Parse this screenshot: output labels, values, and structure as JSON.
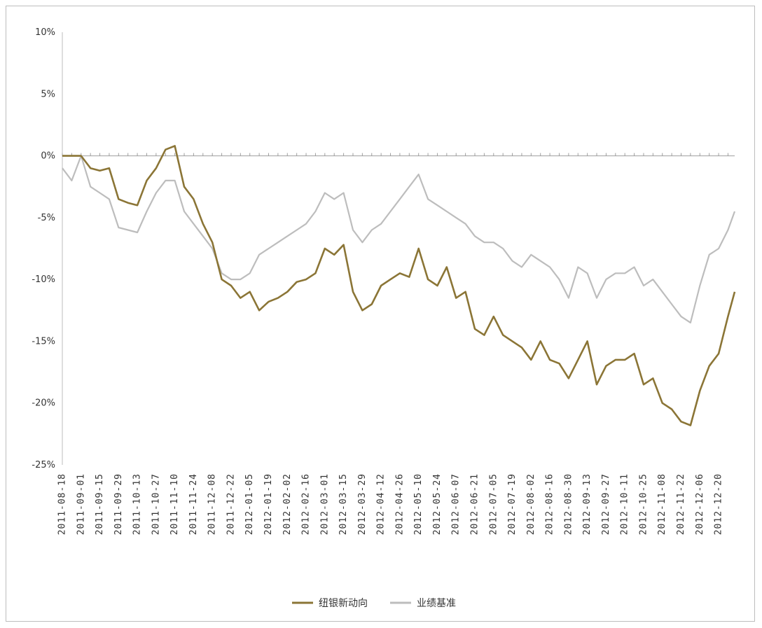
{
  "chart_data": {
    "type": "line",
    "title": "",
    "xlabel": "",
    "ylabel": "",
    "y_tick_labels": [
      "10%",
      "5%",
      "0%",
      "-5%",
      "-10%",
      "-15%",
      "-20%",
      "-25%"
    ],
    "y_tick_values": [
      10,
      5,
      0,
      -5,
      -10,
      -15,
      -20,
      -25
    ],
    "ylim": [
      -25,
      10
    ],
    "xlim": [
      "2011-08-18",
      "2013-01-01"
    ],
    "x_tick_labels": [
      "2011-08-18",
      "2011-09-01",
      "2011-09-15",
      "2011-09-29",
      "2011-10-13",
      "2011-10-27",
      "2011-11-10",
      "2011-11-24",
      "2011-12-08",
      "2011-12-22",
      "2012-01-05",
      "2012-01-19",
      "2012-02-02",
      "2012-02-16",
      "2012-03-01",
      "2012-03-15",
      "2012-03-29",
      "2012-04-12",
      "2012-04-26",
      "2012-05-10",
      "2012-05-24",
      "2012-06-07",
      "2012-06-21",
      "2012-07-05",
      "2012-07-19",
      "2012-08-02",
      "2012-08-16",
      "2012-08-30",
      "2012-09-13",
      "2012-09-27",
      "2012-10-11",
      "2012-10-25",
      "2012-11-08",
      "2012-11-22",
      "2012-12-06",
      "2012-12-20"
    ],
    "grid": false,
    "legend_position": "bottom",
    "series": [
      {
        "name": "纽银新动向",
        "color": "#8B7536",
        "x": [
          "2011-08-18",
          "2011-08-25",
          "2011-09-01",
          "2011-09-08",
          "2011-09-15",
          "2011-09-22",
          "2011-09-29",
          "2011-10-06",
          "2011-10-13",
          "2011-10-20",
          "2011-10-27",
          "2011-11-03",
          "2011-11-10",
          "2011-11-17",
          "2011-11-24",
          "2011-12-01",
          "2011-12-08",
          "2011-12-15",
          "2011-12-22",
          "2011-12-29",
          "2012-01-05",
          "2012-01-12",
          "2012-01-19",
          "2012-01-26",
          "2012-02-02",
          "2012-02-09",
          "2012-02-16",
          "2012-02-23",
          "2012-03-01",
          "2012-03-08",
          "2012-03-15",
          "2012-03-22",
          "2012-03-29",
          "2012-04-05",
          "2012-04-12",
          "2012-04-19",
          "2012-04-26",
          "2012-05-03",
          "2012-05-10",
          "2012-05-17",
          "2012-05-24",
          "2012-05-31",
          "2012-06-07",
          "2012-06-14",
          "2012-06-21",
          "2012-06-28",
          "2012-07-05",
          "2012-07-12",
          "2012-07-19",
          "2012-07-26",
          "2012-08-02",
          "2012-08-09",
          "2012-08-16",
          "2012-08-23",
          "2012-08-30",
          "2012-09-06",
          "2012-09-13",
          "2012-09-20",
          "2012-09-27",
          "2012-10-04",
          "2012-10-11",
          "2012-10-18",
          "2012-10-25",
          "2012-11-01",
          "2012-11-08",
          "2012-11-15",
          "2012-11-22",
          "2012-11-29",
          "2012-12-06",
          "2012-12-13",
          "2012-12-20",
          "2012-12-27",
          "2013-01-01"
        ],
        "values": [
          0,
          0,
          0,
          -1,
          -1.2,
          -1,
          -3.5,
          -3.8,
          -4,
          -2,
          -1,
          0.5,
          0.8,
          -2.5,
          -3.5,
          -5.5,
          -7,
          -10,
          -10.5,
          -11.5,
          -11,
          -12.5,
          -11.8,
          -11.5,
          -11,
          -10.2,
          -10,
          -9.5,
          -7.5,
          -8,
          -7.2,
          -11,
          -12.5,
          -12,
          -10.5,
          -10,
          -9.5,
          -9.8,
          -7.5,
          -10,
          -10.5,
          -9,
          -11.5,
          -11,
          -14,
          -14.5,
          -13,
          -14.5,
          -15,
          -15.5,
          -16.5,
          -15,
          -16.5,
          -16.8,
          -18,
          -16.5,
          -15,
          -18.5,
          -17,
          -16.5,
          -16.5,
          -16,
          -18.5,
          -18,
          -20,
          -20.5,
          -21.5,
          -21.8,
          -19,
          -17,
          -16,
          -13,
          -11
        ]
      },
      {
        "name": "业绩基准",
        "color": "#BDBDBD",
        "x": [
          "2011-08-18",
          "2011-08-25",
          "2011-09-01",
          "2011-09-08",
          "2011-09-15",
          "2011-09-22",
          "2011-09-29",
          "2011-10-06",
          "2011-10-13",
          "2011-10-20",
          "2011-10-27",
          "2011-11-03",
          "2011-11-10",
          "2011-11-17",
          "2011-11-24",
          "2011-12-01",
          "2011-12-08",
          "2011-12-15",
          "2011-12-22",
          "2011-12-29",
          "2012-01-05",
          "2012-01-12",
          "2012-01-19",
          "2012-01-26",
          "2012-02-02",
          "2012-02-09",
          "2012-02-16",
          "2012-02-23",
          "2012-03-01",
          "2012-03-08",
          "2012-03-15",
          "2012-03-22",
          "2012-03-29",
          "2012-04-05",
          "2012-04-12",
          "2012-04-19",
          "2012-04-26",
          "2012-05-03",
          "2012-05-10",
          "2012-05-17",
          "2012-05-24",
          "2012-05-31",
          "2012-06-07",
          "2012-06-14",
          "2012-06-21",
          "2012-06-28",
          "2012-07-05",
          "2012-07-12",
          "2012-07-19",
          "2012-07-26",
          "2012-08-02",
          "2012-08-09",
          "2012-08-16",
          "2012-08-23",
          "2012-08-30",
          "2012-09-06",
          "2012-09-13",
          "2012-09-20",
          "2012-09-27",
          "2012-10-04",
          "2012-10-11",
          "2012-10-18",
          "2012-10-25",
          "2012-11-01",
          "2012-11-08",
          "2012-11-15",
          "2012-11-22",
          "2012-11-29",
          "2012-12-06",
          "2012-12-13",
          "2012-12-20",
          "2012-12-27",
          "2013-01-01"
        ],
        "values": [
          -1,
          -2,
          0,
          -2.5,
          -3,
          -3.5,
          -5.8,
          -6,
          -6.2,
          -4.5,
          -3,
          -2,
          -2,
          -4.5,
          -5.5,
          -6.5,
          -7.5,
          -9.5,
          -10,
          -10,
          -9.5,
          -8,
          -7.5,
          -7,
          -6.5,
          -6,
          -5.5,
          -4.5,
          -3,
          -3.5,
          -3,
          -6,
          -7,
          -6,
          -5.5,
          -4.5,
          -3.5,
          -2.5,
          -1.5,
          -3.5,
          -4,
          -4.5,
          -5,
          -5.5,
          -6.5,
          -7,
          -7,
          -7.5,
          -8.5,
          -9,
          -8,
          -8.5,
          -9,
          -10,
          -11.5,
          -9,
          -9.5,
          -11.5,
          -10,
          -9.5,
          -9.5,
          -9,
          -10.5,
          -10,
          -11,
          -12,
          -13,
          -13.5,
          -10.5,
          -8,
          -7.5,
          -6,
          -4.5
        ]
      }
    ]
  },
  "legend": {
    "items": [
      {
        "label": "纽银新动向",
        "color": "#8B7536"
      },
      {
        "label": "业绩基准",
        "color": "#BDBDBD"
      }
    ]
  }
}
